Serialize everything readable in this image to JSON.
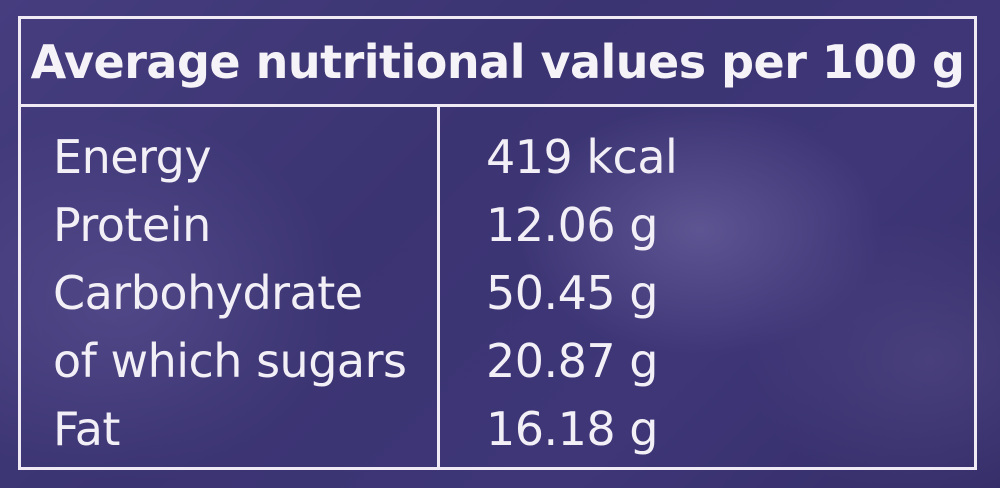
{
  "table": {
    "title": "Average nutritional values per 100 g",
    "rows": [
      {
        "name": "Energy",
        "value": "419 kcal"
      },
      {
        "name": "Protein",
        "value": "12.06 g"
      },
      {
        "name": "Carbohydrate",
        "value": "50.45 g"
      },
      {
        "name": "of which sugars",
        "value": "20.87 g"
      },
      {
        "name": "Fat",
        "value": "16.18 g"
      }
    ]
  },
  "colors": {
    "background": "#3e3677",
    "text": "#f3eff6",
    "border": "#efeaf3"
  }
}
